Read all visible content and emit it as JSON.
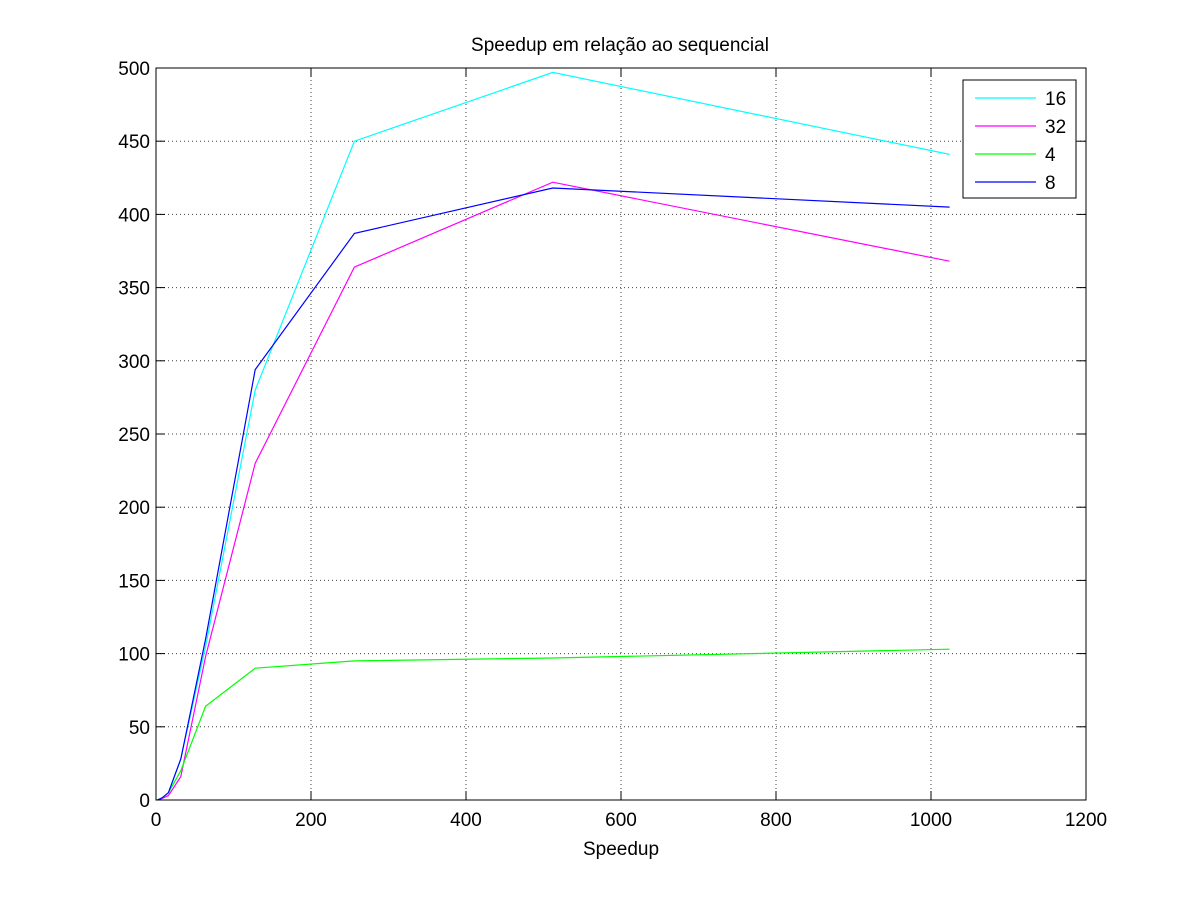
{
  "chart_data": {
    "type": "line",
    "title": "Speedup em relação ao sequencial",
    "xlabel": "Speedup",
    "ylabel": "",
    "xlim": [
      0,
      1200
    ],
    "ylim": [
      0,
      500
    ],
    "xticks": [
      0,
      200,
      400,
      600,
      800,
      1000,
      1200
    ],
    "yticks": [
      0,
      50,
      100,
      150,
      200,
      250,
      300,
      350,
      400,
      450,
      500
    ],
    "grid": true,
    "legend_position": "top-right",
    "x": [
      2,
      4,
      8,
      16,
      32,
      64,
      128,
      256,
      512,
      1024
    ],
    "series": [
      {
        "name": "16",
        "color": "#00ffff",
        "values": [
          0.2,
          0.5,
          1.5,
          5,
          28,
          105,
          280,
          450,
          497,
          441
        ]
      },
      {
        "name": "32",
        "color": "#ff00ff",
        "values": [
          0.1,
          0.3,
          1,
          3,
          16,
          98,
          230,
          364,
          422,
          368
        ]
      },
      {
        "name": "4",
        "color": "#00ff00",
        "values": [
          0.2,
          0.5,
          1.5,
          5,
          20,
          64,
          90,
          95,
          97,
          103
        ]
      },
      {
        "name": "8",
        "color": "#0000ff",
        "values": [
          0.2,
          0.5,
          1.5,
          5,
          28,
          110,
          294,
          387,
          418,
          405
        ]
      }
    ]
  }
}
